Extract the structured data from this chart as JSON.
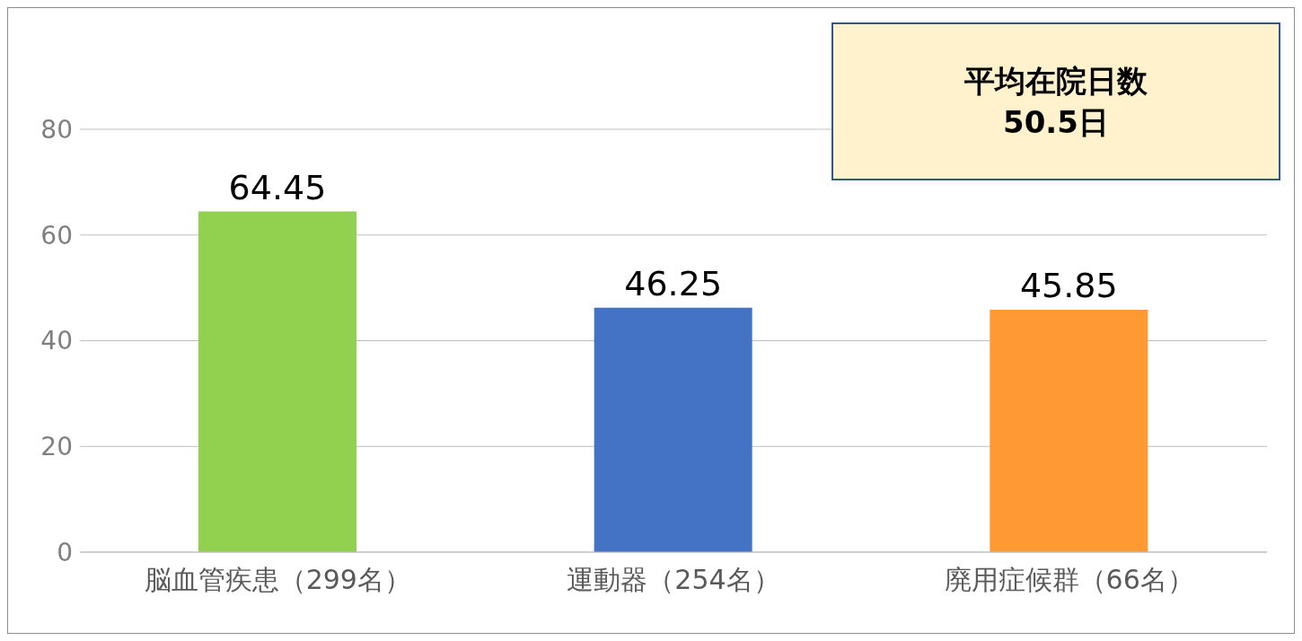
{
  "chart_data": {
    "type": "bar",
    "categories": [
      "脳血管疾患（299名）",
      "運動器（254名）",
      "廃用症候群（66名）"
    ],
    "values": [
      64.45,
      46.25,
      45.85
    ],
    "colors": [
      "#92d050",
      "#4472c4",
      "#ff9933"
    ],
    "ylim": [
      0,
      80
    ],
    "yticks": [
      0,
      20,
      40,
      60,
      80
    ],
    "grid": "y",
    "data_labels": true,
    "annotations": [
      "平均在院日数\n50.5日"
    ]
  }
}
